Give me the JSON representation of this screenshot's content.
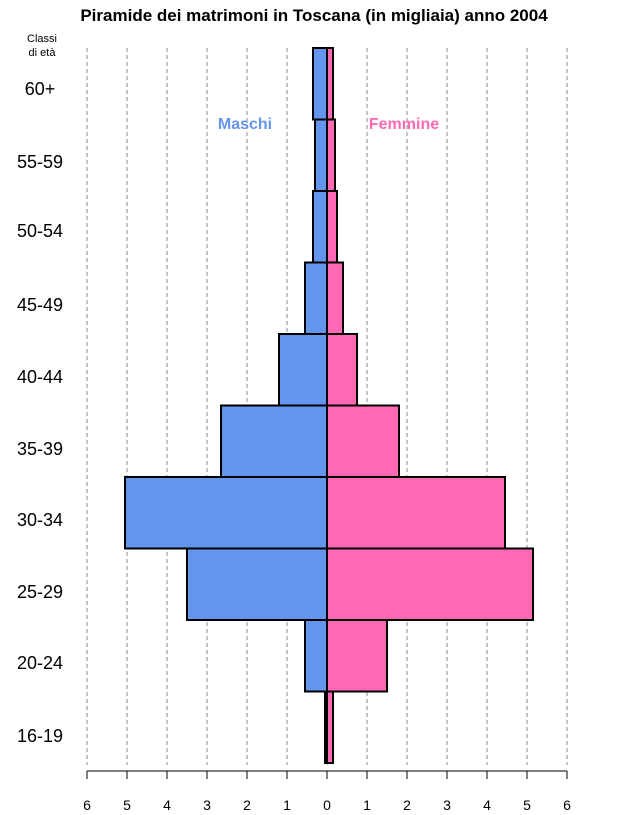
{
  "chart_data": {
    "type": "bar",
    "title": "Piramide dei matrimoni in Toscana (in migliaia) anno 2004",
    "y_heading": [
      "Classi",
      "di età"
    ],
    "categories": [
      "16-19",
      "20-24",
      "25-29",
      "30-34",
      "35-39",
      "40-44",
      "45-49",
      "50-54",
      "55-59",
      "60+"
    ],
    "series": [
      {
        "name": "Maschi",
        "color": "#6495ED",
        "values": [
          0.05,
          0.55,
          3.5,
          5.05,
          2.65,
          1.2,
          0.55,
          0.35,
          0.3,
          0.35
        ]
      },
      {
        "name": "Femmine",
        "color": "#FF69B4",
        "values": [
          0.15,
          1.5,
          5.15,
          4.45,
          1.8,
          0.75,
          0.4,
          0.25,
          0.2,
          0.15
        ]
      }
    ],
    "xticks": [
      "6",
      "5",
      "4",
      "3",
      "2",
      "1",
      "0",
      "1",
      "2",
      "3",
      "4",
      "5",
      "6"
    ],
    "xlim": [
      -6,
      6
    ],
    "grid": true
  }
}
